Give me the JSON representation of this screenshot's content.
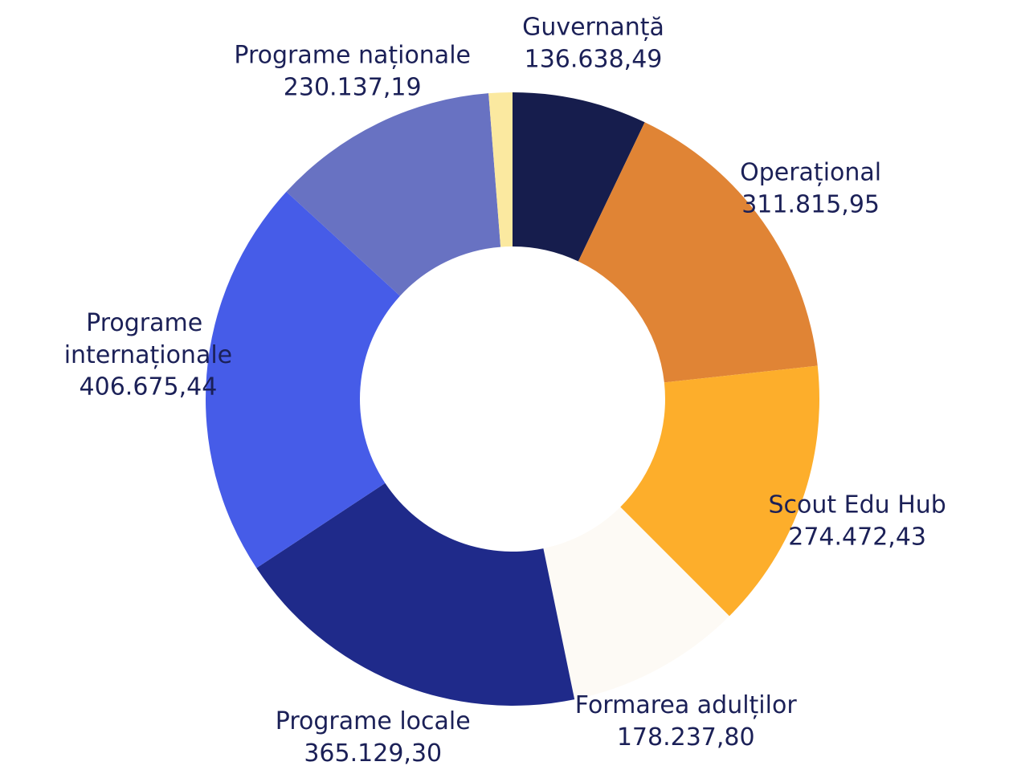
{
  "chart_data": {
    "type": "donut",
    "categories": [
      "Guvernanță",
      "Operațional",
      "Scout Edu Hub",
      "Formarea adulților",
      "Programe locale",
      "Programe internaționale",
      "Programe naționale",
      null
    ],
    "values": [
      136638.49,
      311815.95,
      274472.43,
      178237.8,
      365129.3,
      406675.44,
      230137.19,
      24000
    ],
    "value_labels": [
      "136.638,49",
      "311.815,95",
      "274.472,43",
      "178.237,80",
      "365.129,30",
      "406.675,44",
      "230.137,19",
      null
    ],
    "colors": [
      "#161d4d",
      "#e08435",
      "#fdae2b",
      "#fdfaf5",
      "#1f2a8a",
      "#465ce8",
      "#6872c2",
      "#fbe9a0"
    ]
  }
}
